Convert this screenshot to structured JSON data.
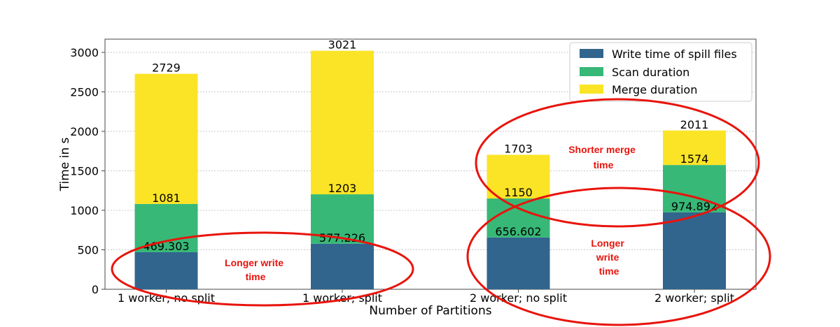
{
  "chart_data": {
    "type": "bar",
    "stacked": true,
    "categories": [
      "1 worker; no split",
      "1 worker; split",
      "2 worker; no split",
      "2 worker; split"
    ],
    "series": [
      {
        "name": "Write time of spill files",
        "color": "#31658e",
        "values": [
          469.303,
          577.226,
          656.602,
          974.892
        ]
      },
      {
        "name": "Scan duration",
        "color": "#37b877",
        "values": [
          611.697,
          625.774,
          493.398,
          599.108
        ]
      },
      {
        "name": "Merge duration",
        "color": "#fbe426",
        "values": [
          1648,
          1818,
          553,
          437
        ]
      }
    ],
    "labels": {
      "write": [
        "469.303",
        "577.226",
        "656.602",
        "974.892"
      ],
      "scan_cum": [
        "1081",
        "1203",
        "1150",
        "1574"
      ],
      "total": [
        "2729",
        "3021",
        "1703",
        "2011"
      ]
    },
    "xlabel": "Number of Partitions",
    "ylabel": "Time in s",
    "ylim": [
      0,
      3000
    ],
    "yticks": [
      0,
      500,
      1000,
      1500,
      2000,
      2500,
      3000
    ],
    "grid": true,
    "legend_position": "top-right",
    "annotations": [
      {
        "lines": [
          "Longer write",
          "time"
        ]
      },
      {
        "lines": [
          "Shorter merge",
          "time"
        ]
      },
      {
        "lines": [
          "Longer",
          "write",
          "time"
        ]
      }
    ],
    "annotation_color": "#e8140c"
  }
}
